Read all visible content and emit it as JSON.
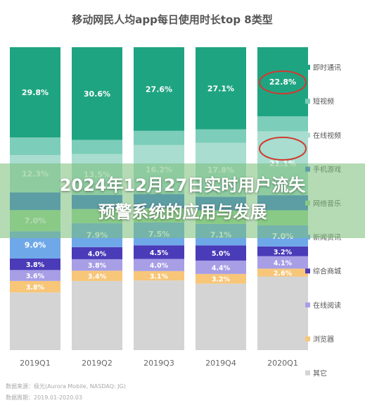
{
  "chart_data": {
    "type": "bar",
    "stacked": true,
    "normalized_percent": true,
    "title": "移动网民人均app每日使用时长top 8类型",
    "categories": [
      "2019Q1",
      "2019Q2",
      "2019Q3",
      "2019Q4",
      "2020Q1"
    ],
    "series": [
      {
        "name": "其它",
        "color": "#d4d4d4",
        "values": [
          null,
          null,
          null,
          null,
          null
        ]
      },
      {
        "name": "浏览器",
        "color": "#f7c678",
        "values": [
          3.8,
          3.4,
          3.1,
          3.2,
          2.6
        ]
      },
      {
        "name": "在线阅读",
        "color": "#a79ee6",
        "values": [
          3.6,
          3.8,
          4.0,
          4.4,
          4.1
        ]
      },
      {
        "name": "综合商城",
        "color": "#4a3bb8",
        "values": [
          3.8,
          4.0,
          4.5,
          5.0,
          3.2
        ]
      },
      {
        "name": "新闻资讯",
        "color": "#6fa8e8",
        "values": [
          9.0,
          7.9,
          7.5,
          7.1,
          7.0
        ]
      },
      {
        "name": "网络音乐",
        "color": "#9fd99a",
        "values": [
          7.0,
          null,
          null,
          null,
          null
        ]
      },
      {
        "name": "手机游戏",
        "color": "#3b78d8",
        "values": [
          null,
          null,
          null,
          null,
          null
        ]
      },
      {
        "name": "在线视频",
        "color": "#a8ddd0",
        "values": [
          12.3,
          13.5,
          16.2,
          17.8,
          21.1
        ]
      },
      {
        "name": "短视频",
        "color": "#7ccdb9",
        "values": [
          null,
          null,
          null,
          null,
          null
        ]
      },
      {
        "name": "即时通讯",
        "color": "#1fa482",
        "values": [
          29.8,
          30.6,
          27.6,
          27.1,
          22.8
        ]
      }
    ],
    "highlighted": [
      "2020Q1 即时通讯 22.8%",
      "2020Q1 在线视频 21.1%"
    ],
    "value_suffix": "%"
  },
  "overlay": {
    "line1": "2024年12月27日实时用户流失",
    "line2": "预警系统的应用与发展"
  },
  "footer": {
    "source": "数据来源：极光(Aurora Mobile, NASDAQ: JG)",
    "period": "数据周期：2019.01-2020.03"
  }
}
